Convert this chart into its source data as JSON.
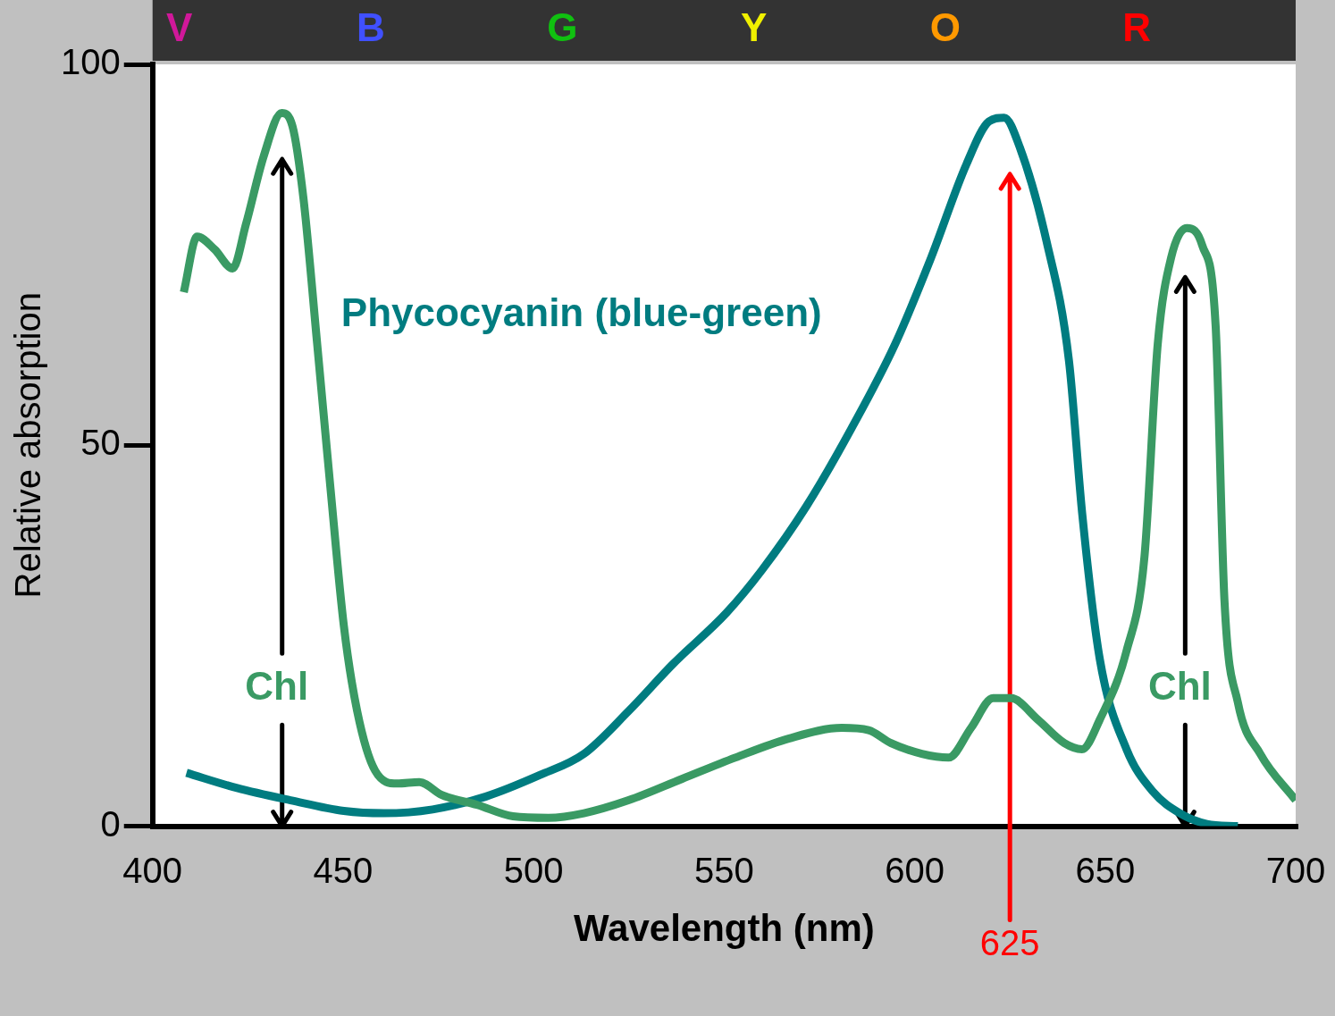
{
  "chart_data": {
    "type": "line",
    "xlabel": "Wavelength (nm)",
    "ylabel": "Relative absorption",
    "xlim": [
      400,
      700
    ],
    "xticks": [
      400,
      450,
      500,
      550,
      600,
      650,
      700
    ],
    "ylim": [
      0,
      100
    ],
    "yticks": [
      0,
      50,
      100
    ],
    "legend": false,
    "marker": "none",
    "line_style": "solid",
    "series": [
      {
        "color": "#3a9a64",
        "x": [
          408.2,
          411.7,
          416.3,
          421.0,
          424.5,
          429.2,
          433.9,
          436.7,
          439.6,
          443.2,
          446.7,
          450.2,
          453.7,
          458.4,
          464.2,
          470.0,
          475.9,
          485.2,
          494.6,
          503.9,
          513.2,
          524.9,
          538.9,
          552.9,
          566.9,
          580.9,
          587.9,
          593.8,
          601.9,
          608.9,
          614.8,
          620.6,
          625.3,
          632.3,
          639.3,
          643.9,
          648.6,
          655.6,
          660.3,
          663.8,
          667.3,
          671.5,
          675.5,
          679.0,
          681.3,
          684.8,
          690.7,
          700.0
        ],
        "values": [
          70.1,
          77.4,
          75.7,
          73.2,
          79.0,
          88.0,
          93.6,
          91.9,
          82.4,
          63.3,
          44.3,
          26.3,
          15.1,
          7.3,
          5.6,
          5.8,
          4.1,
          2.8,
          1.3,
          1.1,
          1.7,
          3.4,
          6.2,
          9.0,
          11.5,
          12.9,
          12.6,
          10.9,
          9.5,
          9.0,
          12.9,
          16.8,
          16.8,
          14.0,
          10.9,
          10.1,
          14.0,
          23.0,
          35.3,
          63.3,
          74.6,
          78.5,
          76.2,
          65.6,
          29.7,
          16.3,
          9.5,
          3.4
        ]
      },
      {
        "name": "Phycocyanin (blue-green)",
        "color": "#007c80",
        "x": [
          408.9,
          422.2,
          436.2,
          450.2,
          460.7,
          473.5,
          487.5,
          501.6,
          513.2,
          524.9,
          536.6,
          550.6,
          559.9,
          571.6,
          583.3,
          594.9,
          604.3,
          613.6,
          619.5,
          623.5,
          627.6,
          634.6,
          640.5,
          644.0,
          648.6,
          655.6,
          662.6,
          669.6,
          676.7,
          684.8
        ],
        "values": [
          7.0,
          5.0,
          3.4,
          2.0,
          1.7,
          2.2,
          3.9,
          6.7,
          9.5,
          15.1,
          21.3,
          28.0,
          33.6,
          42.0,
          52.1,
          63.3,
          74.6,
          86.9,
          92.5,
          93.0,
          89.1,
          76.8,
          61.1,
          40.9,
          21.9,
          10.1,
          4.5,
          1.7,
          0.3,
          0
        ]
      }
    ],
    "annotations": [
      "V",
      "B",
      "G",
      "Y",
      "O",
      "R"
    ],
    "ref_lines": [
      {
        "axis": "x",
        "value": 434,
        "label": "Chl",
        "color": "#000000"
      },
      {
        "axis": "x",
        "value": 625,
        "label": "625",
        "color": "#ff0000"
      },
      {
        "axis": "x",
        "value": 671,
        "label": "Chl",
        "color": "#000000"
      }
    ]
  }
}
